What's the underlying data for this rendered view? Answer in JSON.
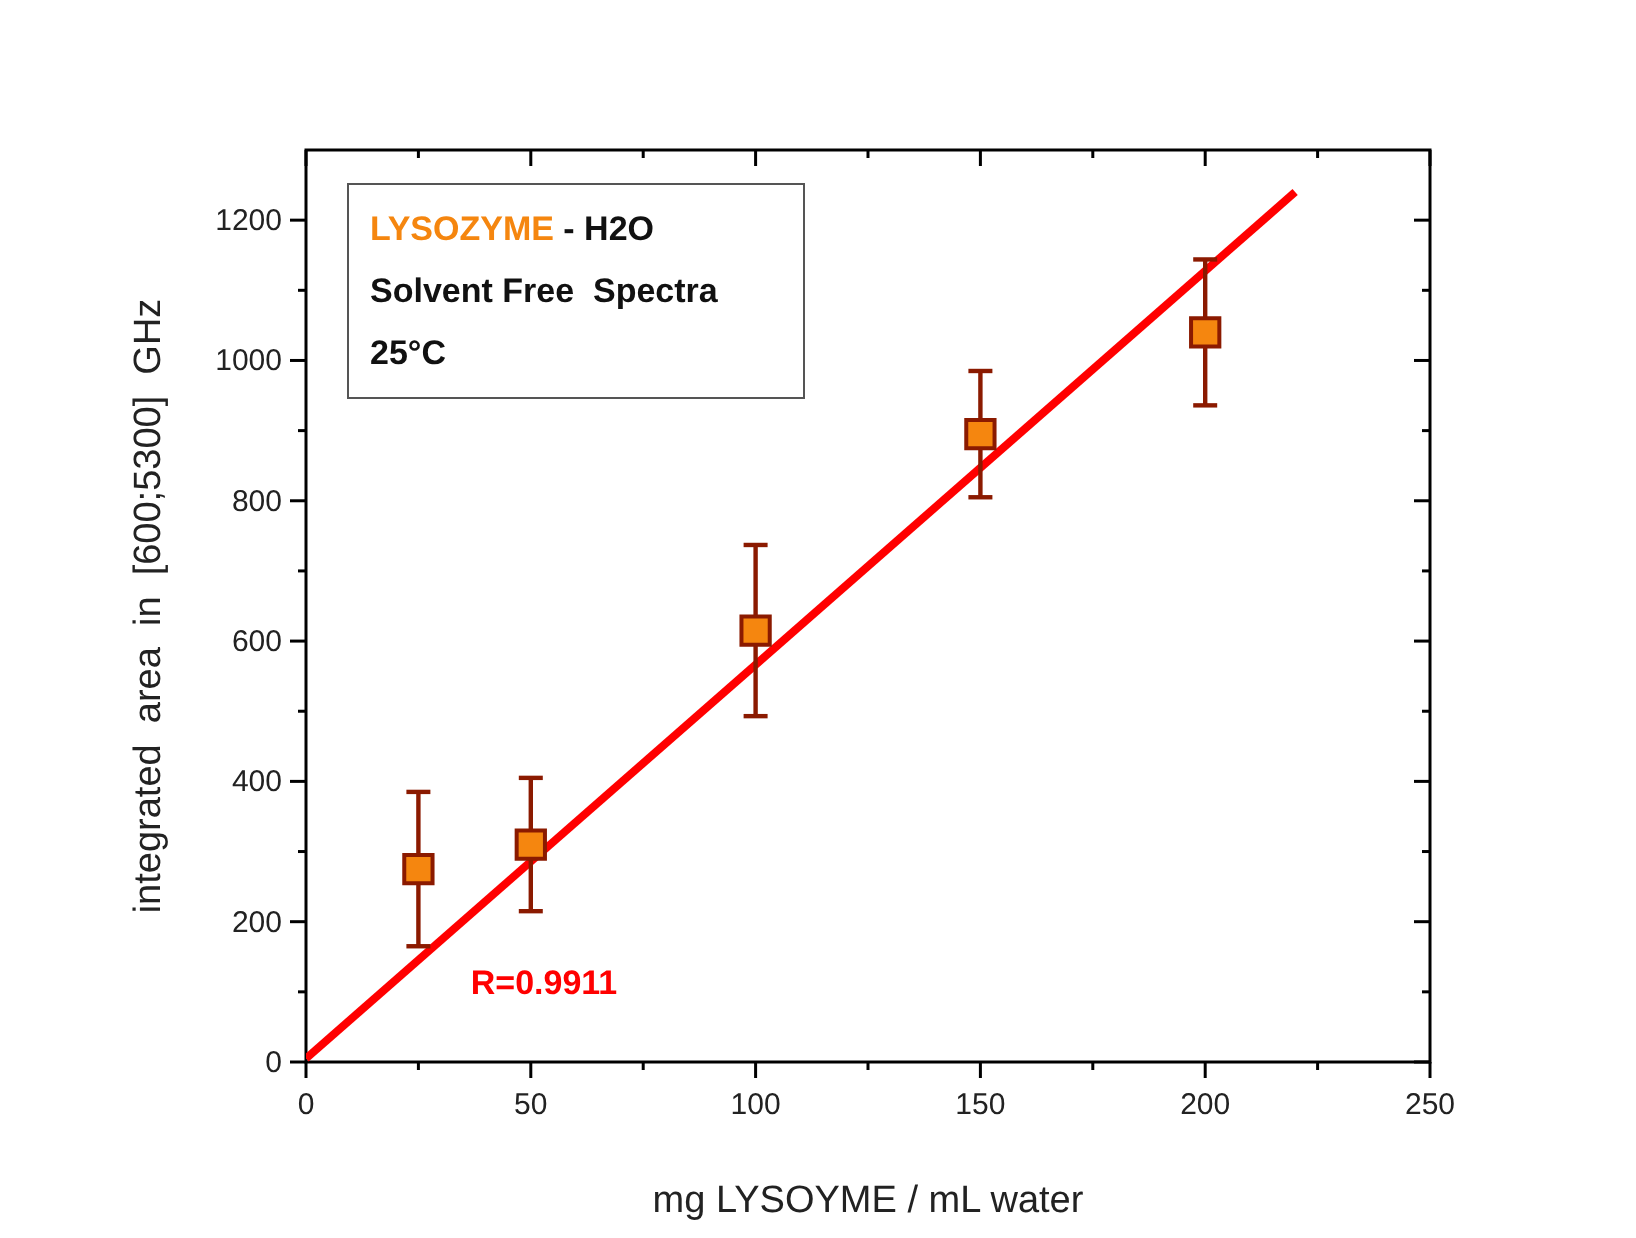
{
  "chart_data": {
    "type": "scatter",
    "xlabel": "mg LYSOYME / mL water",
    "ylabel": "integrated  area  in  [600;5300]  GHz",
    "xlim": [
      0,
      250
    ],
    "xticks": [
      0,
      50,
      100,
      150,
      200,
      250
    ],
    "ylim": [
      0,
      1300
    ],
    "yticks": [
      0,
      200,
      400,
      600,
      800,
      1000,
      1200
    ],
    "grid": false,
    "annotations": [
      "LYSOZYME - H2O",
      "Solvent Free  Spectra",
      "25°C",
      "R=0.9911"
    ],
    "series": [
      {
        "marker": "square",
        "color": "#f5860f",
        "x": [
          25,
          50,
          100,
          150,
          200
        ],
        "values": [
          275,
          310,
          615,
          895,
          1040
        ],
        "errors": [
          110,
          95,
          122,
          90,
          104
        ]
      },
      {
        "type": "line",
        "color": "#ff0000",
        "x": [
          0,
          220
        ],
        "values": [
          5,
          1240
        ]
      }
    ]
  }
}
